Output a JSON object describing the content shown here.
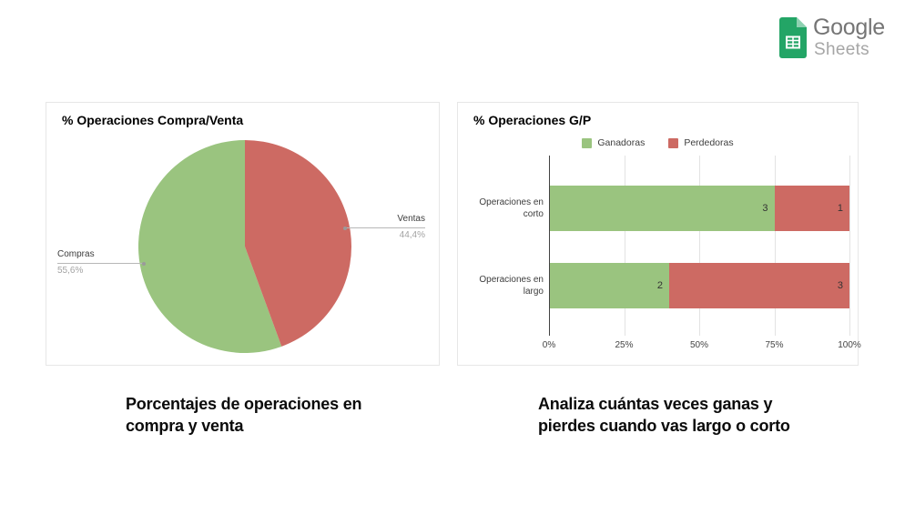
{
  "header": {
    "logo": {
      "product": "Google",
      "suffix": "Sheets"
    }
  },
  "captions": {
    "left": "Porcentajes de operaciones en\ncompra y venta",
    "right": "Analiza cuántas veces ganas y\npierdes cuando vas largo o corto"
  },
  "colors": {
    "green": "#9ac47f",
    "red": "#cd6a63",
    "grid": "#e3e3e3",
    "axis": "#424242",
    "leader_line": "#b7b7b7",
    "pct_gray": "#a3a3a3",
    "text_dark": "#3d3d3d",
    "logo_green": "#23a566",
    "logo_fold_green": "#8ed1b1"
  },
  "chart_data": [
    {
      "type": "pie",
      "title": "% Operaciones Compra/Venta",
      "legend_position": "none",
      "slices": [
        {
          "label": "Compras",
          "value": 55.6,
          "display": "55,6%",
          "color": "#9ac47f"
        },
        {
          "label": "Ventas",
          "value": 44.4,
          "display": "44,4%",
          "color": "#cd6a63"
        }
      ]
    },
    {
      "type": "bar",
      "orientation": "horizontal",
      "stacked": true,
      "normalized_to_100pct": true,
      "title": "% Operaciones G/P",
      "legend_position": "top",
      "grid": true,
      "categories": [
        "Operaciones en corto",
        "Operaciones en largo"
      ],
      "series": [
        {
          "name": "Ganadoras",
          "color": "#9ac47f",
          "values": [
            3,
            2
          ]
        },
        {
          "name": "Perdedoras",
          "color": "#cd6a63",
          "values": [
            1,
            3
          ]
        }
      ],
      "xticks": [
        "0%",
        "25%",
        "50%",
        "75%",
        "100%"
      ],
      "xlim_pct": [
        0,
        100
      ]
    }
  ]
}
